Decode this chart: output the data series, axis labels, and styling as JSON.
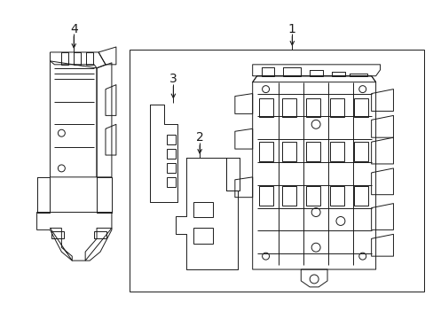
{
  "background_color": "#ffffff",
  "line_color": "#1a1a1a",
  "fig_width": 4.89,
  "fig_height": 3.6,
  "dpi": 100,
  "lw": 0.7
}
